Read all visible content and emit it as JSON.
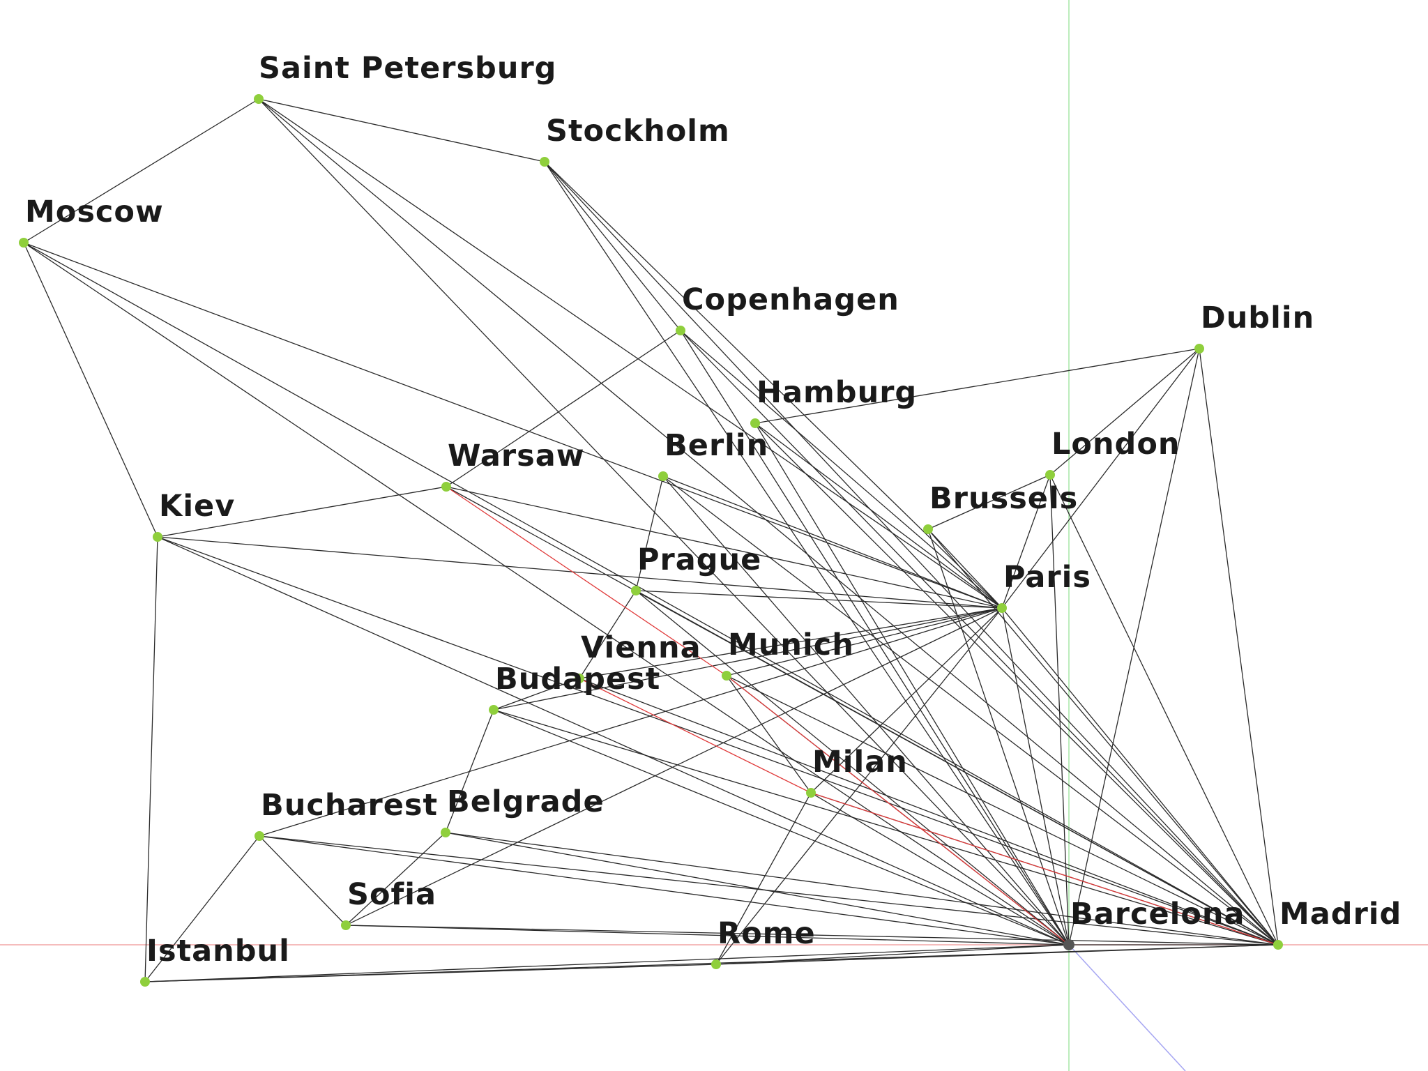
{
  "colors": {
    "node": "#8fcf3c",
    "origin_node": "#555555",
    "edge": "#2a2a2a",
    "highlight_edge": "#e03a3a",
    "axis_x": "#f2a6a6",
    "axis_y": "#a6e6a6",
    "axis_z": "#a6a6f2"
  },
  "cities": [
    {
      "id": "saint_petersburg",
      "label": "Saint Petersburg"
    },
    {
      "id": "stockholm",
      "label": "Stockholm"
    },
    {
      "id": "moscow",
      "label": "Moscow"
    },
    {
      "id": "copenhagen",
      "label": "Copenhagen"
    },
    {
      "id": "dublin",
      "label": "Dublin"
    },
    {
      "id": "hamburg",
      "label": "Hamburg"
    },
    {
      "id": "berlin",
      "label": "Berlin"
    },
    {
      "id": "london",
      "label": "London"
    },
    {
      "id": "warsaw",
      "label": "Warsaw"
    },
    {
      "id": "brussels",
      "label": "Brussels"
    },
    {
      "id": "kiev",
      "label": "Kiev"
    },
    {
      "id": "prague",
      "label": "Prague"
    },
    {
      "id": "paris",
      "label": "Paris"
    },
    {
      "id": "vienna",
      "label": "Vienna"
    },
    {
      "id": "munich",
      "label": "Munich"
    },
    {
      "id": "budapest",
      "label": "Budapest"
    },
    {
      "id": "milan",
      "label": "Milan"
    },
    {
      "id": "bucharest",
      "label": "Bucharest"
    },
    {
      "id": "belgrade",
      "label": "Belgrade"
    },
    {
      "id": "sofia",
      "label": "Sofia"
    },
    {
      "id": "barcelona",
      "label": "Barcelona"
    },
    {
      "id": "madrid",
      "label": "Madrid"
    },
    {
      "id": "rome",
      "label": "Rome"
    },
    {
      "id": "istanbul",
      "label": "Istanbul"
    }
  ],
  "edges": [
    [
      "saint_petersburg",
      "moscow"
    ],
    [
      "saint_petersburg",
      "stockholm"
    ],
    [
      "saint_petersburg",
      "paris"
    ],
    [
      "saint_petersburg",
      "barcelona"
    ],
    [
      "saint_petersburg",
      "madrid"
    ],
    [
      "stockholm",
      "copenhagen"
    ],
    [
      "stockholm",
      "paris"
    ],
    [
      "stockholm",
      "barcelona"
    ],
    [
      "stockholm",
      "madrid"
    ],
    [
      "moscow",
      "paris"
    ],
    [
      "moscow",
      "barcelona"
    ],
    [
      "moscow",
      "madrid"
    ],
    [
      "moscow",
      "kiev"
    ],
    [
      "copenhagen",
      "warsaw"
    ],
    [
      "copenhagen",
      "paris"
    ],
    [
      "copenhagen",
      "barcelona"
    ],
    [
      "copenhagen",
      "madrid"
    ],
    [
      "dublin",
      "hamburg"
    ],
    [
      "dublin",
      "london"
    ],
    [
      "dublin",
      "paris"
    ],
    [
      "dublin",
      "barcelona"
    ],
    [
      "dublin",
      "madrid"
    ],
    [
      "hamburg",
      "paris"
    ],
    [
      "hamburg",
      "barcelona"
    ],
    [
      "hamburg",
      "madrid"
    ],
    [
      "berlin",
      "prague"
    ],
    [
      "berlin",
      "paris"
    ],
    [
      "berlin",
      "barcelona"
    ],
    [
      "berlin",
      "madrid"
    ],
    [
      "london",
      "brussels"
    ],
    [
      "london",
      "paris"
    ],
    [
      "london",
      "barcelona"
    ],
    [
      "london",
      "madrid"
    ],
    [
      "warsaw",
      "kiev"
    ],
    [
      "warsaw",
      "paris"
    ],
    [
      "warsaw",
      "madrid"
    ],
    [
      "brussels",
      "paris"
    ],
    [
      "brussels",
      "barcelona"
    ],
    [
      "brussels",
      "madrid"
    ],
    [
      "kiev",
      "paris"
    ],
    [
      "kiev",
      "barcelona"
    ],
    [
      "kiev",
      "madrid"
    ],
    [
      "kiev",
      "istanbul"
    ],
    [
      "prague",
      "vienna"
    ],
    [
      "prague",
      "paris"
    ],
    [
      "prague",
      "barcelona"
    ],
    [
      "prague",
      "madrid"
    ],
    [
      "vienna",
      "budapest"
    ],
    [
      "vienna",
      "paris"
    ],
    [
      "vienna",
      "madrid"
    ],
    [
      "munich",
      "paris"
    ],
    [
      "munich",
      "barcelona"
    ],
    [
      "munich",
      "madrid"
    ],
    [
      "munich",
      "milan"
    ],
    [
      "budapest",
      "belgrade"
    ],
    [
      "budapest",
      "paris"
    ],
    [
      "budapest",
      "barcelona"
    ],
    [
      "budapest",
      "madrid"
    ],
    [
      "milan",
      "paris"
    ],
    [
      "milan",
      "barcelona"
    ],
    [
      "milan",
      "madrid"
    ],
    [
      "milan",
      "rome"
    ],
    [
      "bucharest",
      "paris"
    ],
    [
      "bucharest",
      "barcelona"
    ],
    [
      "bucharest",
      "madrid"
    ],
    [
      "bucharest",
      "istanbul"
    ],
    [
      "bucharest",
      "sofia"
    ],
    [
      "belgrade",
      "barcelona"
    ],
    [
      "belgrade",
      "madrid"
    ],
    [
      "belgrade",
      "sofia"
    ],
    [
      "sofia",
      "paris"
    ],
    [
      "sofia",
      "barcelona"
    ],
    [
      "sofia",
      "madrid"
    ],
    [
      "rome",
      "paris"
    ],
    [
      "rome",
      "barcelona"
    ],
    [
      "rome",
      "madrid"
    ],
    [
      "rome",
      "istanbul"
    ],
    [
      "istanbul",
      "barcelona"
    ],
    [
      "istanbul",
      "madrid"
    ],
    [
      "paris",
      "barcelona"
    ],
    [
      "paris",
      "madrid"
    ],
    [
      "barcelona",
      "madrid"
    ]
  ],
  "highlight_path": [
    [
      "warsaw",
      "munich"
    ],
    [
      "munich",
      "barcelona"
    ],
    [
      "vienna",
      "milan"
    ],
    [
      "milan",
      "madrid"
    ]
  ],
  "origin_city": "barcelona"
}
